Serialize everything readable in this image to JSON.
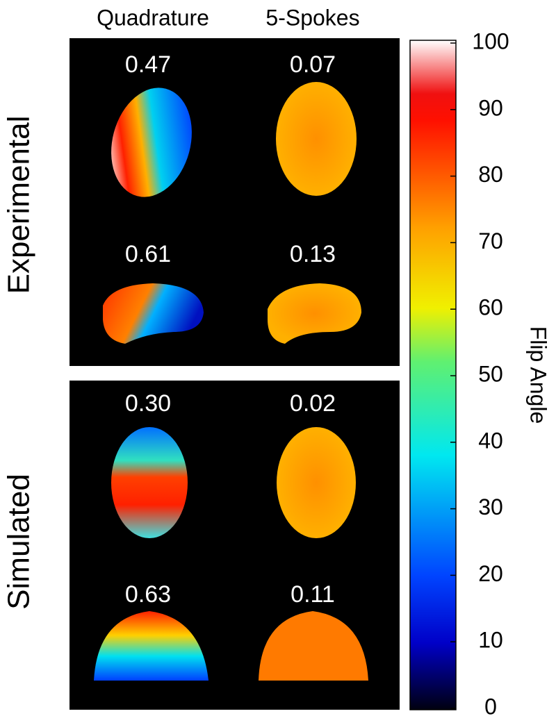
{
  "columns": [
    "Quadrature",
    "5-Spokes"
  ],
  "rows": [
    {
      "label": "Experimental",
      "panels": [
        [
          "0.47",
          "0.07"
        ],
        [
          "0.61",
          "0.13"
        ]
      ]
    },
    {
      "label": "Simulated",
      "panels": [
        [
          "0.30",
          "0.02"
        ],
        [
          "0.63",
          "0.11"
        ]
      ]
    }
  ],
  "colorbar": {
    "label": "Flip Angle",
    "ticks": [
      0,
      10,
      20,
      30,
      40,
      50,
      60,
      70,
      80,
      90,
      100
    ]
  }
}
